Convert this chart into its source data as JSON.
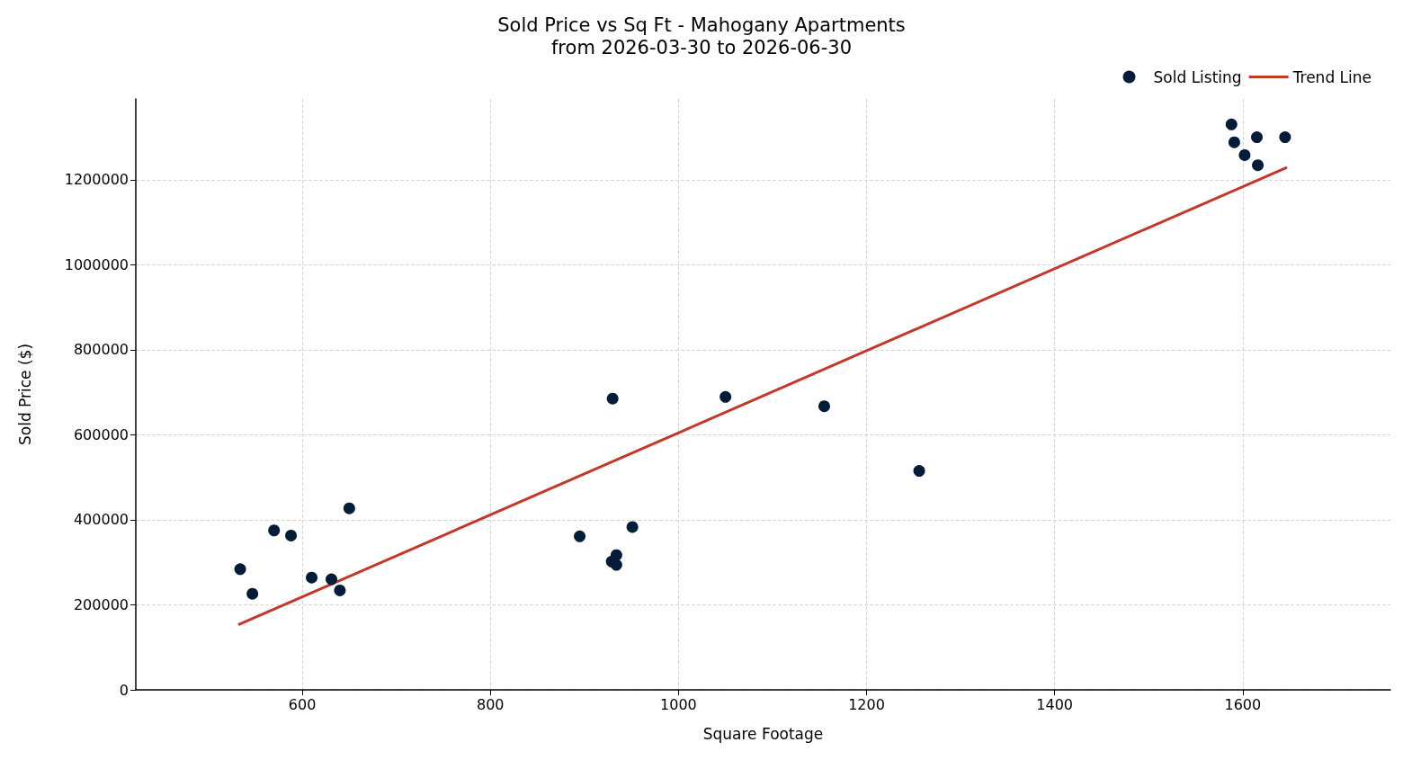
{
  "chart_data": {
    "type": "scatter",
    "title": "Sold Price vs Sq Ft - Mahogany Apartments",
    "subtitle": "from 2026-03-30 to 2026-06-30",
    "xlabel": "Square Footage",
    "ylabel": "Sold Price ($)",
    "series": [
      {
        "name": "Sold Listing",
        "color": "#041c38",
        "marker": "circle",
        "x": [
          534,
          547,
          570,
          588,
          610,
          631,
          640,
          650,
          895,
          930,
          934,
          929,
          934,
          951,
          1050,
          1155,
          1256,
          1588,
          1591,
          1615,
          1645,
          1602,
          1616
        ],
        "values": [
          284000,
          226000,
          375000,
          363000,
          264000,
          260000,
          234000,
          427000,
          361000,
          685000,
          317000,
          302000,
          294000,
          383000,
          689000,
          667000,
          515000,
          1330000,
          1288000,
          1300000,
          1300000,
          1258000,
          1234000
        ]
      },
      {
        "name": "Trend Line",
        "type": "line",
        "color": "#c0392b",
        "line_style": "solid",
        "marker": "none",
        "x": [
          533,
          1646
        ],
        "values": [
          154000,
          1228000
        ]
      }
    ],
    "xlim": [
      423,
      1757
    ],
    "ylim": [
      0,
      1390000
    ],
    "xticks": [
      600,
      800,
      1000,
      1200,
      1400,
      1600
    ],
    "yticks": [
      0,
      200000,
      400000,
      600000,
      800000,
      1000000,
      1200000
    ],
    "grid": true,
    "legend": "top right"
  }
}
